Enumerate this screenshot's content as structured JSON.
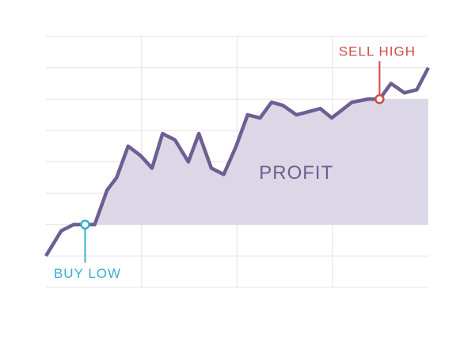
{
  "chart_data": {
    "type": "line",
    "x": [
      0,
      0.16,
      0.29,
      0.41,
      0.51,
      0.64,
      0.74,
      0.86,
      0.99,
      1.11,
      1.22,
      1.35,
      1.49,
      1.6,
      1.73,
      1.86,
      1.99,
      2.11,
      2.24,
      2.36,
      2.48,
      2.62,
      2.75,
      2.87,
      2.99,
      3.2,
      3.37,
      3.49,
      3.61,
      3.75,
      3.88,
      4.0
    ],
    "values": [
      1.0,
      1.8,
      2.0,
      2.0,
      2.0,
      3.1,
      3.5,
      4.5,
      4.2,
      3.8,
      4.9,
      4.7,
      4.0,
      4.9,
      3.8,
      3.6,
      4.5,
      5.5,
      5.4,
      5.9,
      5.8,
      5.5,
      5.6,
      5.7,
      5.4,
      5.9,
      6.0,
      6.0,
      6.5,
      6.2,
      6.3,
      7.0
    ],
    "color": "#6d5e93",
    "area_color": "#dcd7e6",
    "area_label": "PROFIT",
    "annotations": [
      {
        "text": "BUY LOW",
        "x": 0.41,
        "y": 2.0,
        "color": "#3aafcb"
      },
      {
        "text": "SELL HIGH",
        "x": 3.49,
        "y": 6.0,
        "color": "#d04c48"
      }
    ],
    "xlim": [
      0,
      4
    ],
    "ylim": [
      0,
      8
    ],
    "xticks": [
      1,
      2,
      3
    ],
    "yticks": [
      0,
      1,
      2,
      3,
      4,
      5,
      6,
      7,
      8
    ],
    "grid": true
  }
}
